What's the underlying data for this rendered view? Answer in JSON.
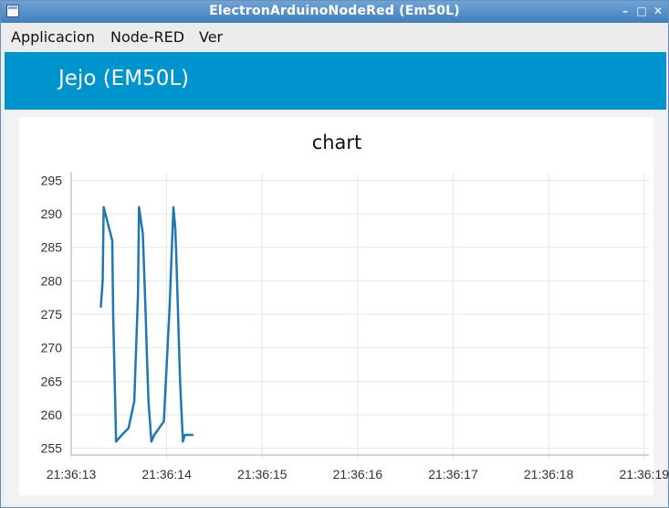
{
  "window": {
    "title": "ElectronArduinoNodeRed (Em50L)",
    "controls": {
      "minimize": "–",
      "maximize": "□",
      "close": "✕"
    }
  },
  "menu": {
    "items": [
      "Applicacion",
      "Node-RED",
      "Ver"
    ]
  },
  "header": {
    "title": "Jejo (EM50L)",
    "background": "#0094ce"
  },
  "chart_data": {
    "type": "line",
    "title": "chart",
    "xlabel": "",
    "ylabel": "",
    "x_ticks": [
      "21:36:13",
      "21:36:14",
      "21:36:15",
      "21:36:16",
      "21:36:17",
      "21:36:18",
      "21:36:19"
    ],
    "y_ticks": [
      255,
      260,
      265,
      270,
      275,
      280,
      285,
      290,
      295
    ],
    "ylim": [
      254,
      296
    ],
    "xlim": [
      0,
      6.05
    ],
    "grid": true,
    "legend": "none",
    "color": "#1f77b4",
    "series": [
      {
        "x": [
          0.31,
          0.33,
          0.34,
          0.43,
          0.44,
          0.47,
          0.53,
          0.6,
          0.66,
          0.7,
          0.71,
          0.75,
          0.78,
          0.79,
          0.81,
          0.84,
          0.87,
          0.92,
          0.97,
          1.03,
          1.07,
          1.09,
          1.1,
          1.14,
          1.17,
          1.19,
          1.23,
          1.28
        ],
        "y": [
          276,
          280,
          291,
          286,
          275,
          256,
          257,
          258,
          262,
          278,
          291,
          287,
          275,
          270,
          262,
          256,
          257,
          258,
          259,
          276,
          291,
          288,
          284,
          265,
          256,
          257,
          257,
          257
        ]
      }
    ]
  }
}
